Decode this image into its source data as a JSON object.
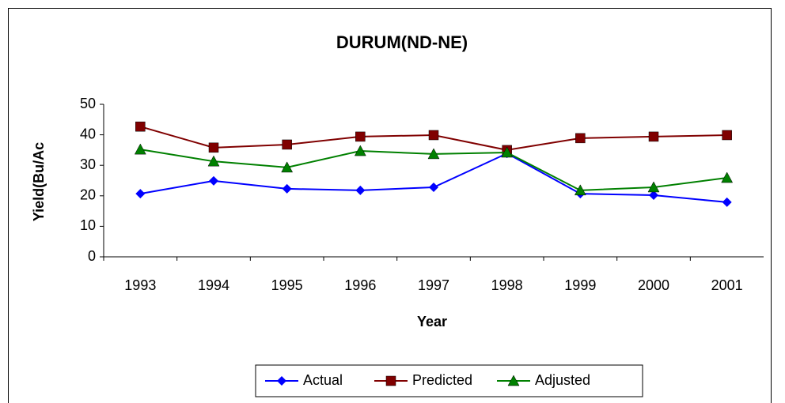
{
  "chart_data": {
    "type": "line",
    "title": "DURUM(ND-NE)",
    "x_label": "Year",
    "y_label": "Yield(Bu/Ac",
    "categories": [
      "1993",
      "1994",
      "1995",
      "1996",
      "1997",
      "1998",
      "1999",
      "2000",
      "2001"
    ],
    "series": [
      {
        "name": "Actual",
        "color": "#0000ff",
        "marker": "diamond",
        "values": [
          20.7,
          24.9,
          22.3,
          21.8,
          22.8,
          33.9,
          20.7,
          20.2,
          17.9
        ]
      },
      {
        "name": "Predicted",
        "color": "#800000",
        "marker": "square",
        "values": [
          42.7,
          35.8,
          36.8,
          39.4,
          39.9,
          35.0,
          38.9,
          39.4,
          39.9
        ]
      },
      {
        "name": "Adjusted",
        "color": "#008000",
        "marker": "triangle",
        "values": [
          35.2,
          31.3,
          29.3,
          34.7,
          33.7,
          34.2,
          21.8,
          22.8,
          25.9
        ]
      }
    ],
    "ylim": [
      0,
      50
    ],
    "yticks": [
      0,
      10,
      20,
      30,
      40,
      50
    ],
    "grid": false,
    "legend": "bottom"
  }
}
